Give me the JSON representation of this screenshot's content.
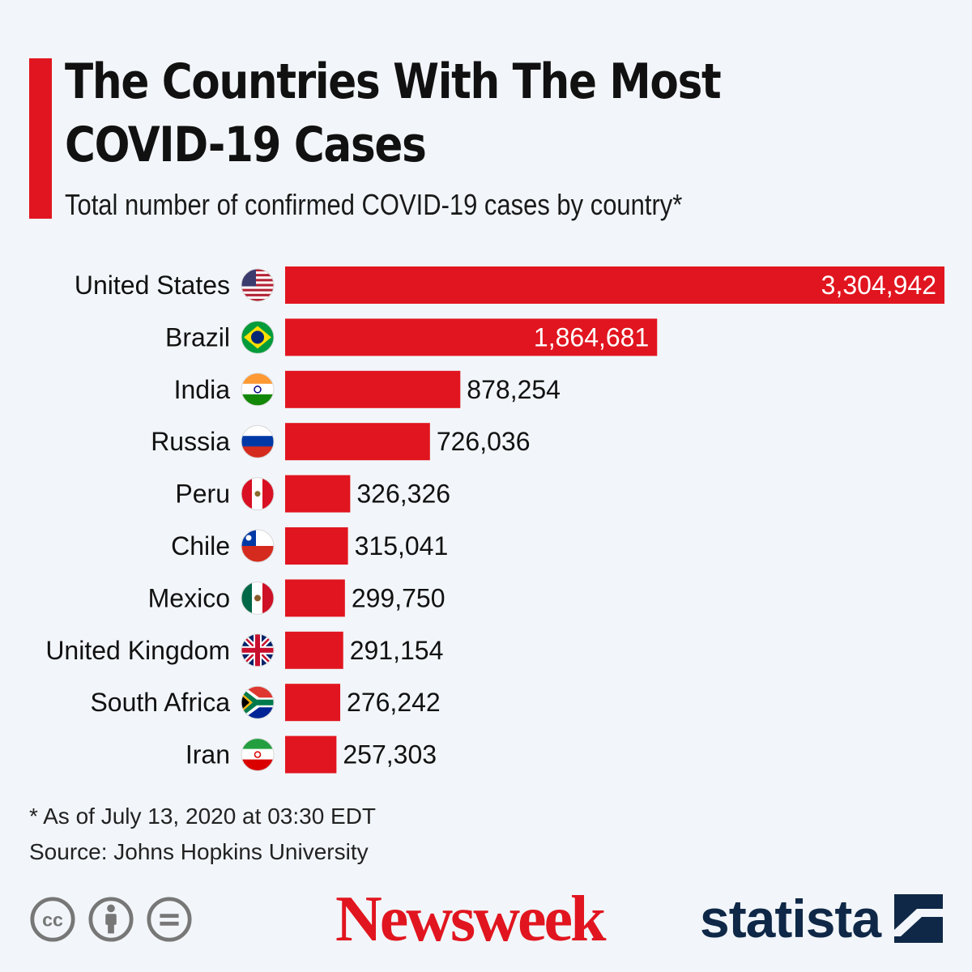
{
  "title": "The Countries With The Most COVID-19 Cases",
  "subtitle": "Total number of confirmed COVID-19 cases by country*",
  "footnote": "* As of July 13, 2020 at 03:30 EDT",
  "source": "Source: Johns Hopkins University",
  "brand": {
    "newsweek": "Newsweek",
    "statista": "statista"
  },
  "license_icons": [
    "cc-icon",
    "attribution-icon",
    "no-derivatives-icon"
  ],
  "license_text": {
    "cc": "cc",
    "nd": "="
  },
  "colors": {
    "bar": "#e1151f",
    "accent": "#e1151f",
    "background": "#f2f6fa",
    "statista": "#0f2847"
  },
  "chart_data": {
    "type": "bar",
    "orientation": "horizontal",
    "categories": [
      "United States",
      "Brazil",
      "India",
      "Russia",
      "Peru",
      "Chile",
      "Mexico",
      "United Kingdom",
      "South Africa",
      "Iran"
    ],
    "flags": [
      "us-flag-icon",
      "brazil-flag-icon",
      "india-flag-icon",
      "russia-flag-icon",
      "peru-flag-icon",
      "chile-flag-icon",
      "mexico-flag-icon",
      "uk-flag-icon",
      "south-africa-flag-icon",
      "iran-flag-icon"
    ],
    "values": [
      3304942,
      1864681,
      878254,
      726036,
      326326,
      315041,
      299750,
      291154,
      276242,
      257303
    ],
    "value_labels": [
      "3,304,942",
      "1,864,681",
      "878,254",
      "726,036",
      "326,326",
      "315,041",
      "299,750",
      "291,154",
      "276,242",
      "257,303"
    ],
    "xlim": [
      0,
      3304942
    ],
    "grid": false,
    "legend": "none"
  }
}
